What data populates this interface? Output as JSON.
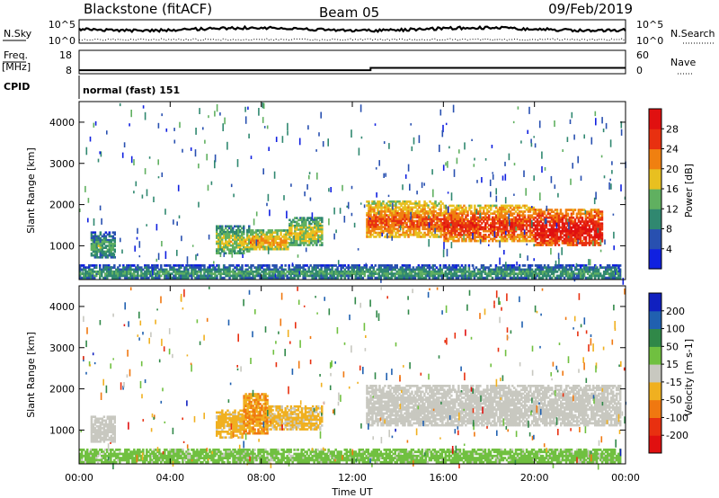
{
  "header": {
    "site": "Blackstone (fitACF)",
    "beam": "Beam 05",
    "date": "09/Feb/2019"
  },
  "noise_panel": {
    "left_label": "N.Sky",
    "right_label": "N.Search",
    "left_ticks": [
      "10^5",
      "10^0"
    ],
    "right_ticks": [
      "10^5",
      "10^0"
    ]
  },
  "freq_panel": {
    "left_label_1": "Freq.",
    "left_label_2": "[MHz]",
    "left_ticks": [
      "18",
      "8"
    ],
    "right_label": "Nave",
    "right_ticks": [
      "60",
      "0"
    ]
  },
  "cpid_panel": {
    "label": "CPID",
    "value": "normal (fast) 151"
  },
  "time_axis": {
    "label": "Time UT",
    "ticks": [
      "00:00",
      "04:00",
      "08:00",
      "12:00",
      "16:00",
      "20:00",
      "00:00"
    ]
  },
  "chart_data": [
    {
      "type": "heatmap",
      "title": "",
      "parameter": "Power",
      "colorbar_label": "Power [dB]",
      "colorbar_ticks": [
        "4",
        "8",
        "12",
        "16",
        "20",
        "24",
        "28"
      ],
      "colorbar_range": [
        0,
        32
      ],
      "colors": [
        "#1020e0",
        "#2850b0",
        "#308870",
        "#60b060",
        "#e8c020",
        "#f08010",
        "#e83010",
        "#e01010"
      ],
      "ylabel": "Slant Range [km]",
      "yticks": [
        "1000",
        "2000",
        "3000",
        "4000"
      ],
      "ylim": [
        180,
        4500
      ],
      "xlabel": "",
      "xlim_hours": [
        0,
        24
      ],
      "regions": [
        {
          "t_start": 0.5,
          "t_end": 1.6,
          "r_low": 700,
          "r_high": 1350,
          "level_dB": 6
        },
        {
          "t_start": 6.0,
          "t_end": 7.5,
          "r_low": 800,
          "r_high": 1500,
          "level_dB": 10
        },
        {
          "t_start": 7.5,
          "t_end": 9.2,
          "r_low": 900,
          "r_high": 1400,
          "level_dB": 14
        },
        {
          "t_start": 9.2,
          "t_end": 10.7,
          "r_low": 1000,
          "r_high": 1700,
          "level_dB": 11
        },
        {
          "t_start": 12.6,
          "t_end": 16.0,
          "r_low": 1200,
          "r_high": 2100,
          "level_dB": 17
        },
        {
          "t_start": 16.0,
          "t_end": 20.0,
          "r_low": 1100,
          "r_high": 2000,
          "level_dB": 19
        },
        {
          "t_start": 20.0,
          "t_end": 23.0,
          "r_low": 1000,
          "r_high": 1900,
          "level_dB": 22
        },
        {
          "t_start": 0.0,
          "t_end": 23.8,
          "r_low": 200,
          "r_high": 550,
          "level_dB": 5
        }
      ]
    },
    {
      "type": "heatmap",
      "title": "",
      "parameter": "Velocity",
      "colorbar_label": "Velocity [m s-1]",
      "colorbar_ticks": [
        "200",
        "100",
        "50",
        "15",
        "-15",
        "-50",
        "-100",
        "-200"
      ],
      "colorbar_range": [
        -250,
        250
      ],
      "colors": [
        "#1020c0",
        "#2060b0",
        "#308848",
        "#70c040",
        "#c8c8c0",
        "#f0b020",
        "#f07810",
        "#e83010",
        "#e01010"
      ],
      "ylabel": "Slant Range [km]",
      "yticks": [
        "1000",
        "2000",
        "3000",
        "4000"
      ],
      "ylim": [
        180,
        4500
      ],
      "xlabel": "Time UT",
      "xlim_hours": [
        0,
        24
      ],
      "regions": [
        {
          "t_start": 0.5,
          "t_end": 1.6,
          "r_low": 700,
          "r_high": 1350,
          "velocity": 0
        },
        {
          "t_start": 6.0,
          "t_end": 7.2,
          "r_low": 800,
          "r_high": 1500,
          "velocity": -40
        },
        {
          "t_start": 7.2,
          "t_end": 8.3,
          "r_low": 900,
          "r_high": 1900,
          "velocity": -80
        },
        {
          "t_start": 8.3,
          "t_end": 10.7,
          "r_low": 1000,
          "r_high": 1600,
          "velocity": -35
        },
        {
          "t_start": 12.6,
          "t_end": 23.8,
          "r_low": 1100,
          "r_high": 2100,
          "velocity": 0
        },
        {
          "t_start": 0.0,
          "t_end": 23.8,
          "r_low": 200,
          "r_high": 550,
          "velocity": 40
        }
      ]
    },
    {
      "type": "line",
      "title": "",
      "parameter": "Frequency",
      "units": "MHz",
      "x_hours": [
        0,
        12.8,
        12.8,
        24
      ],
      "values": [
        9.5,
        9.5,
        10.5,
        10.5
      ],
      "ylim": [
        8,
        18
      ]
    }
  ]
}
